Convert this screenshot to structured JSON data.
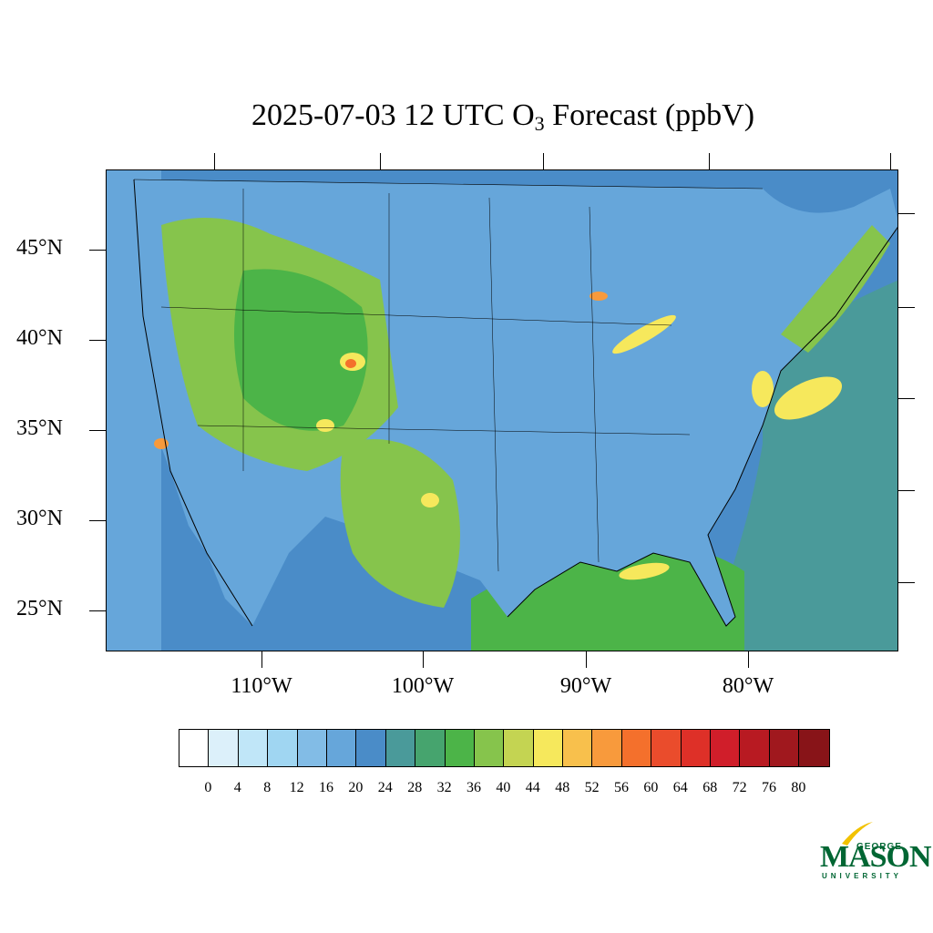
{
  "title": {
    "prefix": "2025-07-03 12 UTC O",
    "subscript": "3",
    "suffix": " Forecast (ppbV)"
  },
  "lat_labels": [
    "45°N",
    "40°N",
    "35°N",
    "30°N",
    "25°N"
  ],
  "lon_labels": [
    "110°W",
    "100°W",
    "90°W",
    "80°W"
  ],
  "colorbar": {
    "labels": [
      "0",
      "4",
      "8",
      "12",
      "16",
      "20",
      "24",
      "28",
      "32",
      "36",
      "40",
      "44",
      "48",
      "52",
      "56",
      "60",
      "64",
      "68",
      "72",
      "76",
      "80"
    ],
    "colors": [
      "#ffffff",
      "#dcf0fa",
      "#c0e6f8",
      "#a0d6f2",
      "#82bce6",
      "#66a6da",
      "#4a8cc8",
      "#4a9a9a",
      "#46a46e",
      "#4cb448",
      "#86c44c",
      "#c4d452",
      "#f6e85c",
      "#f8c04c",
      "#f89a3c",
      "#f4702c",
      "#ea4c2c",
      "#de3028",
      "#d01e2a",
      "#b81a22",
      "#a0181e",
      "#881418"
    ]
  },
  "logo": {
    "line1": "GEORGE",
    "line2": "MASON",
    "line3": "UNIVERSITY"
  }
}
